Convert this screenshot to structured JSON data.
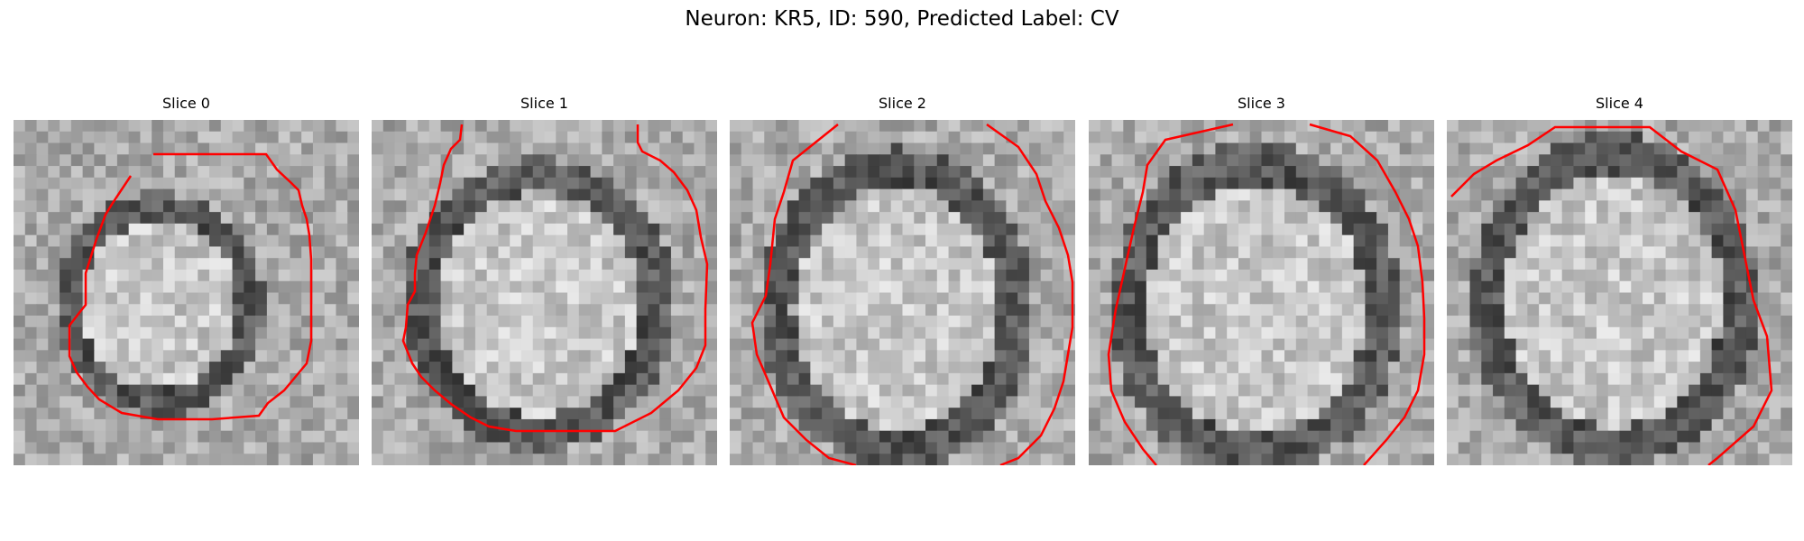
{
  "figure": {
    "title": "Neuron: KR5, ID: 590, Predicted Label: CV"
  },
  "contour_color": "#ff0000",
  "panels": [
    {
      "title": "Slice 0"
    },
    {
      "title": "Slice 1"
    },
    {
      "title": "Slice 2"
    },
    {
      "title": "Slice 3"
    },
    {
      "title": "Slice 4"
    }
  ]
}
